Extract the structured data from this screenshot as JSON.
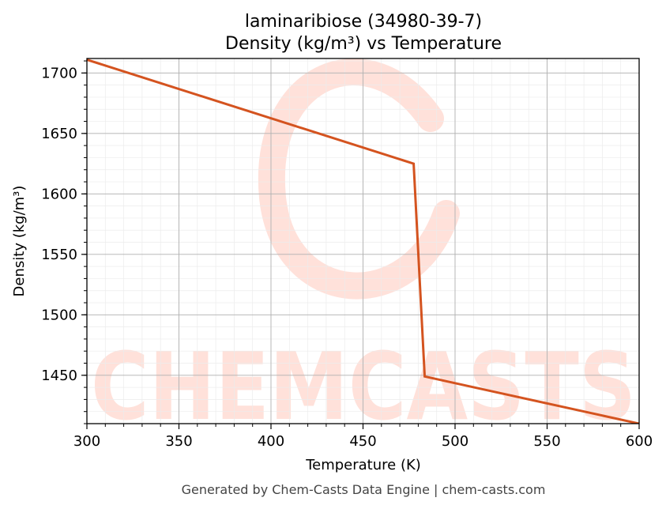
{
  "chart_data": {
    "type": "line",
    "title": "laminaribiose (34980-39-7)",
    "subtitle": "Density (kg/m³) vs Temperature",
    "xlabel": "Temperature (K)",
    "ylabel": "Density (kg/m³)",
    "xlim": [
      300,
      600
    ],
    "ylim": [
      1410,
      1712
    ],
    "xticks": [
      300,
      350,
      400,
      450,
      500,
      550,
      600
    ],
    "yticks": [
      1450,
      1500,
      1550,
      1600,
      1650,
      1700
    ],
    "grid": true,
    "line_color": "#d4531f",
    "series": [
      {
        "x": [
          300,
          477.5,
          483.5,
          600
        ],
        "y": [
          1711,
          1625,
          1449,
          1410
        ]
      }
    ]
  },
  "watermark": {
    "text": "CHEMCASTS",
    "color": "#ffe1da"
  },
  "footer": "Generated by Chem-Casts Data Engine | chem-casts.com"
}
